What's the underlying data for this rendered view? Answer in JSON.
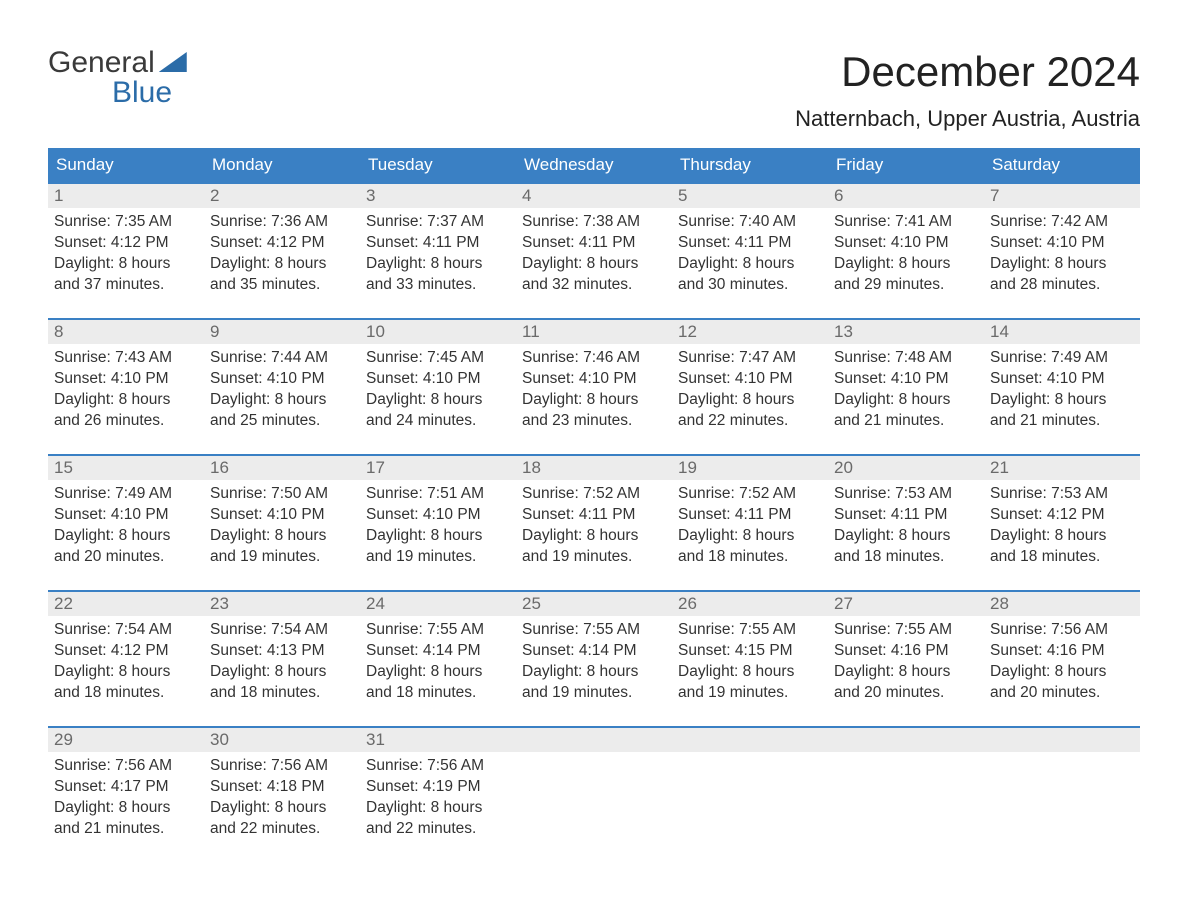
{
  "brand": {
    "line1": "General",
    "line2": "Blue"
  },
  "header": {
    "month_title": "December 2024",
    "location": "Natternbach, Upper Austria, Austria"
  },
  "colors": {
    "header_bg": "#3a80c4",
    "header_text": "#ffffff",
    "week_border": "#3a80c4",
    "daynum_bg": "#ececec",
    "daynum_text": "#6a6a6a",
    "body_text": "#333333",
    "page_bg": "#ffffff",
    "brand_blue": "#2b6ca8"
  },
  "typography": {
    "month_title_fontsize": 42,
    "location_fontsize": 22,
    "dow_fontsize": 17,
    "daynum_fontsize": 17,
    "body_fontsize": 15.5
  },
  "calendar": {
    "type": "table",
    "columns": [
      "Sunday",
      "Monday",
      "Tuesday",
      "Wednesday",
      "Thursday",
      "Friday",
      "Saturday"
    ],
    "weeks": [
      [
        {
          "day": "1",
          "sunrise": "7:35 AM",
          "sunset": "4:12 PM",
          "daylight_h": "8",
          "daylight_m": "37"
        },
        {
          "day": "2",
          "sunrise": "7:36 AM",
          "sunset": "4:12 PM",
          "daylight_h": "8",
          "daylight_m": "35"
        },
        {
          "day": "3",
          "sunrise": "7:37 AM",
          "sunset": "4:11 PM",
          "daylight_h": "8",
          "daylight_m": "33"
        },
        {
          "day": "4",
          "sunrise": "7:38 AM",
          "sunset": "4:11 PM",
          "daylight_h": "8",
          "daylight_m": "32"
        },
        {
          "day": "5",
          "sunrise": "7:40 AM",
          "sunset": "4:11 PM",
          "daylight_h": "8",
          "daylight_m": "30"
        },
        {
          "day": "6",
          "sunrise": "7:41 AM",
          "sunset": "4:10 PM",
          "daylight_h": "8",
          "daylight_m": "29"
        },
        {
          "day": "7",
          "sunrise": "7:42 AM",
          "sunset": "4:10 PM",
          "daylight_h": "8",
          "daylight_m": "28"
        }
      ],
      [
        {
          "day": "8",
          "sunrise": "7:43 AM",
          "sunset": "4:10 PM",
          "daylight_h": "8",
          "daylight_m": "26"
        },
        {
          "day": "9",
          "sunrise": "7:44 AM",
          "sunset": "4:10 PM",
          "daylight_h": "8",
          "daylight_m": "25"
        },
        {
          "day": "10",
          "sunrise": "7:45 AM",
          "sunset": "4:10 PM",
          "daylight_h": "8",
          "daylight_m": "24"
        },
        {
          "day": "11",
          "sunrise": "7:46 AM",
          "sunset": "4:10 PM",
          "daylight_h": "8",
          "daylight_m": "23"
        },
        {
          "day": "12",
          "sunrise": "7:47 AM",
          "sunset": "4:10 PM",
          "daylight_h": "8",
          "daylight_m": "22"
        },
        {
          "day": "13",
          "sunrise": "7:48 AM",
          "sunset": "4:10 PM",
          "daylight_h": "8",
          "daylight_m": "21"
        },
        {
          "day": "14",
          "sunrise": "7:49 AM",
          "sunset": "4:10 PM",
          "daylight_h": "8",
          "daylight_m": "21"
        }
      ],
      [
        {
          "day": "15",
          "sunrise": "7:49 AM",
          "sunset": "4:10 PM",
          "daylight_h": "8",
          "daylight_m": "20"
        },
        {
          "day": "16",
          "sunrise": "7:50 AM",
          "sunset": "4:10 PM",
          "daylight_h": "8",
          "daylight_m": "19"
        },
        {
          "day": "17",
          "sunrise": "7:51 AM",
          "sunset": "4:10 PM",
          "daylight_h": "8",
          "daylight_m": "19"
        },
        {
          "day": "18",
          "sunrise": "7:52 AM",
          "sunset": "4:11 PM",
          "daylight_h": "8",
          "daylight_m": "19"
        },
        {
          "day": "19",
          "sunrise": "7:52 AM",
          "sunset": "4:11 PM",
          "daylight_h": "8",
          "daylight_m": "18"
        },
        {
          "day": "20",
          "sunrise": "7:53 AM",
          "sunset": "4:11 PM",
          "daylight_h": "8",
          "daylight_m": "18"
        },
        {
          "day": "21",
          "sunrise": "7:53 AM",
          "sunset": "4:12 PM",
          "daylight_h": "8",
          "daylight_m": "18"
        }
      ],
      [
        {
          "day": "22",
          "sunrise": "7:54 AM",
          "sunset": "4:12 PM",
          "daylight_h": "8",
          "daylight_m": "18"
        },
        {
          "day": "23",
          "sunrise": "7:54 AM",
          "sunset": "4:13 PM",
          "daylight_h": "8",
          "daylight_m": "18"
        },
        {
          "day": "24",
          "sunrise": "7:55 AM",
          "sunset": "4:14 PM",
          "daylight_h": "8",
          "daylight_m": "18"
        },
        {
          "day": "25",
          "sunrise": "7:55 AM",
          "sunset": "4:14 PM",
          "daylight_h": "8",
          "daylight_m": "19"
        },
        {
          "day": "26",
          "sunrise": "7:55 AM",
          "sunset": "4:15 PM",
          "daylight_h": "8",
          "daylight_m": "19"
        },
        {
          "day": "27",
          "sunrise": "7:55 AM",
          "sunset": "4:16 PM",
          "daylight_h": "8",
          "daylight_m": "20"
        },
        {
          "day": "28",
          "sunrise": "7:56 AM",
          "sunset": "4:16 PM",
          "daylight_h": "8",
          "daylight_m": "20"
        }
      ],
      [
        {
          "day": "29",
          "sunrise": "7:56 AM",
          "sunset": "4:17 PM",
          "daylight_h": "8",
          "daylight_m": "21"
        },
        {
          "day": "30",
          "sunrise": "7:56 AM",
          "sunset": "4:18 PM",
          "daylight_h": "8",
          "daylight_m": "22"
        },
        {
          "day": "31",
          "sunrise": "7:56 AM",
          "sunset": "4:19 PM",
          "daylight_h": "8",
          "daylight_m": "22"
        },
        null,
        null,
        null,
        null
      ]
    ],
    "labels": {
      "sunrise_prefix": "Sunrise: ",
      "sunset_prefix": "Sunset: ",
      "daylight_prefix": "Daylight: ",
      "hours_word": " hours",
      "and_word": "and ",
      "minutes_word": " minutes."
    }
  }
}
